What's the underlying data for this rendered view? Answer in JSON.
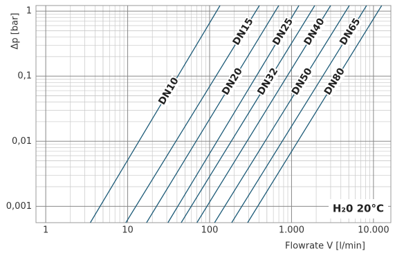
{
  "chart_data": {
    "type": "line",
    "log_x": true,
    "log_y": true,
    "grid": true,
    "minor_grid": true,
    "y_label": "Δp [bar]",
    "x_label": "Flowrate V [l/min]",
    "annotation": "H₂0 20°C",
    "xlim": [
      0.76,
      16300
    ],
    "ylim": [
      0.00056,
      1.22
    ],
    "xticks": [
      1,
      10,
      100,
      {
        "value": 1000,
        "label": "1.000"
      },
      {
        "value": 10000,
        "label": "10.000"
      }
    ],
    "yticks": [
      {
        "value": 0.001,
        "label": "0,001"
      },
      {
        "value": 0.01,
        "label": "0,01"
      },
      {
        "value": 0.1,
        "label": "0,1"
      },
      1
    ],
    "series": [
      {
        "name": "DN10",
        "color": "#1d5b78",
        "x": [
          3.5,
          134
        ],
        "values": [
          0.00056,
          1.22
        ]
      },
      {
        "name": "DN15",
        "color": "#1d5b78",
        "x": [
          9.5,
          405
        ],
        "values": [
          0.00056,
          1.22
        ]
      },
      {
        "name": "DN20",
        "color": "#1d5b78",
        "x": [
          17,
          698
        ],
        "values": [
          0.00056,
          1.22
        ]
      },
      {
        "name": "DN25",
        "color": "#1d5b78",
        "x": [
          31,
          1230
        ],
        "values": [
          0.00056,
          1.22
        ]
      },
      {
        "name": "DN32",
        "color": "#1d5b78",
        "x": [
          45,
          1920
        ],
        "values": [
          0.00056,
          1.22
        ]
      },
      {
        "name": "DN40",
        "color": "#1d5b78",
        "x": [
          70,
          3000
        ],
        "values": [
          0.00056,
          1.22
        ]
      },
      {
        "name": "DN50",
        "color": "#1d5b78",
        "x": [
          115,
          5070
        ],
        "values": [
          0.00056,
          1.22
        ]
      },
      {
        "name": "DN65",
        "color": "#1d5b78",
        "x": [
          186,
          8240
        ],
        "values": [
          0.00056,
          1.22
        ]
      },
      {
        "name": "DN80",
        "color": "#1d5b78",
        "x": [
          291,
          12600
        ],
        "values": [
          0.00056,
          1.22
        ]
      }
    ]
  }
}
